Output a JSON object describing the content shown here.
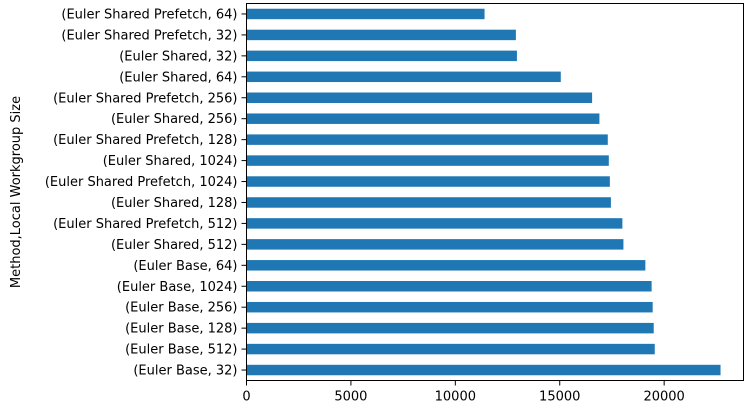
{
  "chart_data": {
    "type": "bar",
    "orientation": "horizontal",
    "title": "",
    "xlabel": "",
    "ylabel": "Method,Local Workgroup Size",
    "xlim": [
      0,
      23800
    ],
    "xticks": [
      0,
      5000,
      10000,
      15000,
      20000
    ],
    "xtick_labels": [
      "0",
      "5000",
      "10000",
      "15000",
      "20000"
    ],
    "grid": false,
    "legend": "none",
    "bar_color": "#1f77b4",
    "categories": [
      "(Euler Shared Prefetch, 64)",
      "(Euler Shared Prefetch, 32)",
      "(Euler Shared, 32)",
      "(Euler Shared, 64)",
      "(Euler Shared Prefetch, 256)",
      "(Euler Shared, 256)",
      "(Euler Shared Prefetch, 128)",
      "(Euler Shared, 1024)",
      "(Euler Shared Prefetch, 1024)",
      "(Euler Shared, 128)",
      "(Euler Shared Prefetch, 512)",
      "(Euler Shared, 512)",
      "(Euler Base, 64)",
      "(Euler Base, 1024)",
      "(Euler Base, 256)",
      "(Euler Base, 128)",
      "(Euler Base, 512)",
      "(Euler Base, 32)"
    ],
    "values": [
      11400,
      12900,
      12950,
      15050,
      16550,
      16900,
      17300,
      17350,
      17400,
      17450,
      18000,
      18050,
      19100,
      19400,
      19450,
      19500,
      19550,
      22700
    ]
  }
}
